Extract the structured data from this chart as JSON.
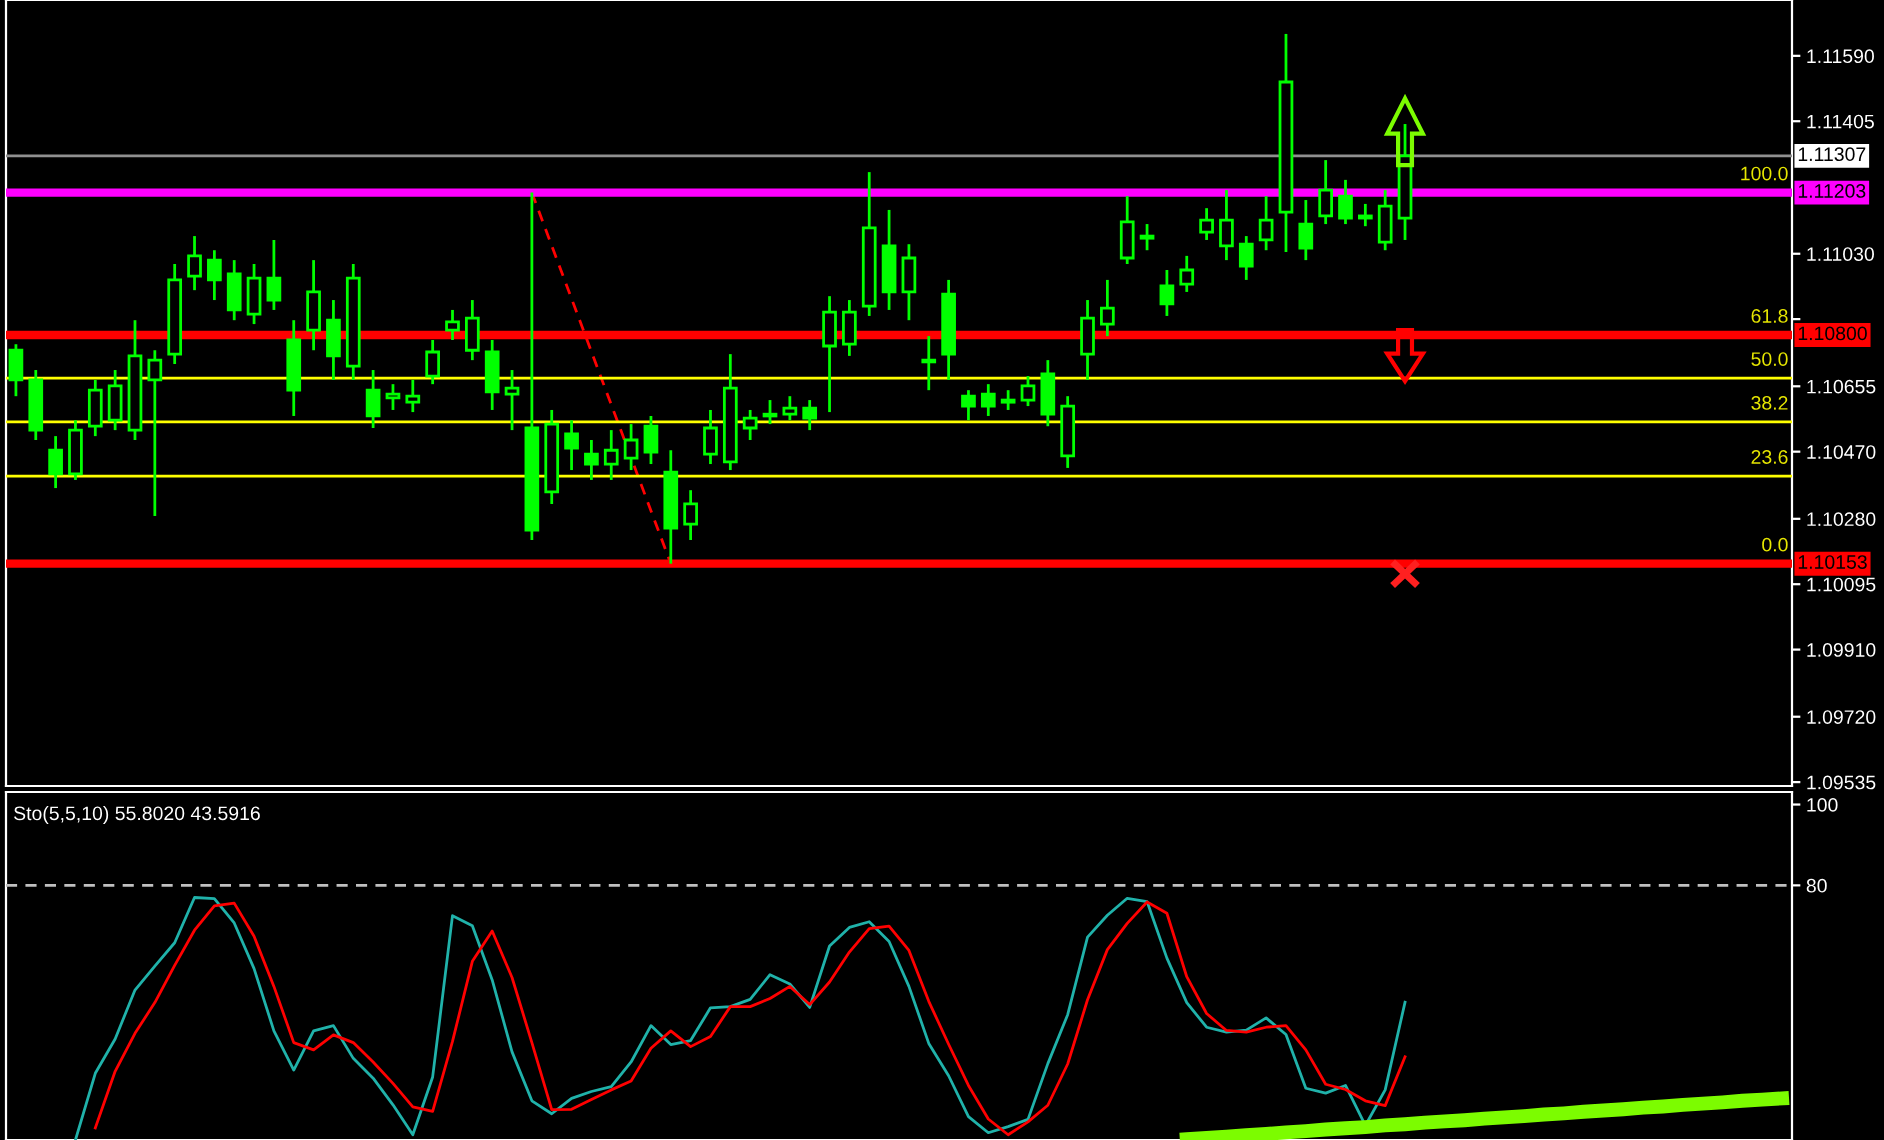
{
  "chart_data": [
    {
      "type": "candlestick",
      "color": "#00ff00",
      "tick_labels": "y",
      "grid": false,
      "categories": [
        null,
        null,
        null,
        null,
        null,
        null,
        null,
        null,
        null,
        null,
        null,
        null,
        null,
        null,
        null,
        null,
        null,
        null,
        null,
        null,
        null,
        null,
        null,
        null,
        null,
        null,
        null,
        null,
        null,
        null,
        null,
        null,
        null,
        null,
        null,
        null,
        null,
        null,
        null,
        null,
        null,
        null,
        null,
        null,
        null,
        null,
        null,
        null,
        null,
        null,
        null,
        null,
        null,
        null,
        null,
        null,
        null,
        null,
        null,
        null,
        null,
        null,
        null,
        null,
        null,
        null,
        null,
        null,
        null,
        null,
        null,
        null,
        null,
        null,
        null,
        null,
        null,
        null,
        null,
        null,
        null,
        null,
        null,
        null,
        null,
        null,
        null,
        null,
        null,
        null
      ],
      "ohlc": [
        [
          1.10757,
          1.10774,
          1.10627,
          1.10673
        ],
        [
          1.10673,
          1.10701,
          1.10503,
          1.10531
        ],
        [
          1.10474,
          1.10514,
          1.10367,
          1.10407
        ],
        [
          1.10407,
          1.10559,
          1.1039,
          1.10531
        ],
        [
          1.10542,
          1.10673,
          1.10514,
          1.10644
        ],
        [
          1.10559,
          1.10701,
          1.10531,
          1.10656
        ],
        [
          1.10531,
          1.10842,
          1.10503,
          1.10741
        ],
        [
          1.10673,
          1.10757,
          1.10288,
          1.10729
        ],
        [
          1.10746,
          1.11001,
          1.10718,
          1.10956
        ],
        [
          1.10967,
          1.1108,
          1.10927,
          1.11024
        ],
        [
          1.11012,
          1.1104,
          1.10899,
          1.10956
        ],
        [
          1.10973,
          1.11012,
          1.10842,
          1.10871
        ],
        [
          1.10859,
          1.11001,
          1.10831,
          1.10961
        ],
        [
          1.10961,
          1.11069,
          1.10871,
          1.10899
        ],
        [
          1.10786,
          1.10842,
          1.10571,
          1.10644
        ],
        [
          1.10814,
          1.11012,
          1.10757,
          1.10922
        ],
        [
          1.10842,
          1.10899,
          1.10673,
          1.10741
        ],
        [
          1.10712,
          1.11001,
          1.10673,
          1.10961
        ],
        [
          1.10644,
          1.10701,
          1.10537,
          1.10571
        ],
        [
          1.10622,
          1.10661,
          1.10588,
          1.10633
        ],
        [
          1.1061,
          1.10673,
          1.10582,
          1.10627
        ],
        [
          1.10684,
          1.10786,
          1.10661,
          1.10752
        ],
        [
          1.10814,
          1.10871,
          1.10786,
          1.10837
        ],
        [
          1.10757,
          1.10899,
          1.10729,
          1.10848
        ],
        [
          1.10752,
          1.10786,
          1.10588,
          1.10639
        ],
        [
          1.10633,
          1.10701,
          1.10531,
          1.1065
        ],
        [
          1.10537,
          1.11203,
          1.1022,
          1.10248
        ],
        [
          1.10356,
          1.10588,
          1.10322,
          1.10548
        ],
        [
          1.1052,
          1.10559,
          1.10418,
          1.1048
        ],
        [
          1.10463,
          1.10503,
          1.1039,
          1.10435
        ],
        [
          1.10435,
          1.10531,
          1.1039,
          1.10474
        ],
        [
          1.10452,
          1.10548,
          1.10418,
          1.10503
        ],
        [
          1.10542,
          1.10571,
          1.10435,
          1.10469
        ],
        [
          1.10412,
          1.10474,
          1.10153,
          1.10254
        ],
        [
          1.10265,
          1.10361,
          1.1022,
          1.10322
        ],
        [
          1.10463,
          1.10588,
          1.10435,
          1.10537
        ],
        [
          1.10441,
          1.10746,
          1.10418,
          1.1065
        ],
        [
          1.10537,
          1.10588,
          1.10503,
          1.10565
        ],
        [
          1.10571,
          1.10616,
          1.10548,
          1.10576
        ],
        [
          1.10576,
          1.10627,
          1.10559,
          1.10593
        ],
        [
          1.10593,
          1.10616,
          1.10531,
          1.10565
        ],
        [
          1.10769,
          1.1091,
          1.10582,
          1.10865
        ],
        [
          1.10774,
          1.10899,
          1.10741,
          1.10865
        ],
        [
          1.10882,
          1.11261,
          1.10854,
          1.11103
        ],
        [
          1.11052,
          1.11154,
          1.10871,
          1.10922
        ],
        [
          1.10922,
          1.11057,
          1.10842,
          1.11018
        ],
        [
          1.10729,
          1.10797,
          1.10644,
          1.10724
        ],
        [
          1.10916,
          1.10956,
          1.10673,
          1.10746
        ],
        [
          1.10627,
          1.10644,
          1.10559,
          1.10599
        ],
        [
          1.10633,
          1.10661,
          1.10571,
          1.10599
        ],
        [
          1.10616,
          1.10644,
          1.10588,
          1.1061
        ],
        [
          1.10616,
          1.10684,
          1.10599,
          1.10656
        ],
        [
          1.1069,
          1.10729,
          1.10542,
          1.10576
        ],
        [
          1.10458,
          1.10627,
          1.10424,
          1.10599
        ],
        [
          1.10746,
          1.10899,
          1.10673,
          1.10848
        ],
        [
          1.10831,
          1.10956,
          1.10797,
          1.10876
        ],
        [
          1.11018,
          1.11193,
          1.11001,
          1.1112
        ],
        [
          1.11074,
          1.11114,
          1.1104,
          1.1108
        ],
        [
          1.10939,
          1.10984,
          1.10854,
          1.10888
        ],
        [
          1.10944,
          1.11024,
          1.10922,
          1.10984
        ],
        [
          1.11091,
          1.11159,
          1.11069,
          1.11125
        ],
        [
          1.11052,
          1.1121,
          1.11012,
          1.11125
        ],
        [
          1.11057,
          1.1108,
          1.10956,
          1.10995
        ],
        [
          1.11069,
          1.11193,
          1.1104,
          1.11125
        ],
        [
          1.11148,
          1.11652,
          1.11035,
          1.11516
        ],
        [
          1.11114,
          1.11182,
          1.11012,
          1.11046
        ],
        [
          1.11137,
          1.11295,
          1.11114,
          1.1121
        ],
        [
          1.11193,
          1.11239,
          1.11114,
          1.11131
        ],
        [
          1.11131,
          1.11171,
          1.11108,
          1.11137
        ],
        [
          1.11063,
          1.1121,
          1.1104,
          1.11165
        ],
        [
          1.11131,
          1.11397,
          1.11069,
          1.11307
        ],
        null,
        null,
        null,
        null,
        null,
        null,
        null,
        null,
        null,
        null,
        null,
        null,
        null,
        null,
        null,
        null,
        null,
        null,
        null
      ],
      "ylim": [
        1.09524,
        1.11748
      ],
      "yticks": [
        {
          "value": 1.1159,
          "label": "1.11590"
        },
        {
          "value": 1.11405,
          "label": "1.11405"
        },
        {
          "value": 1.1103,
          "label": "1.11030"
        },
        {
          "value": 1.10845,
          "label": null
        },
        {
          "value": 1.10655,
          "label": "1.10655"
        },
        {
          "value": 1.1047,
          "label": "1.10470"
        },
        {
          "value": 1.1028,
          "label": "1.10280"
        },
        {
          "value": 1.10095,
          "label": "1.10095"
        },
        {
          "value": 1.0991,
          "label": "1.09910"
        },
        {
          "value": 1.0972,
          "label": "1.09720"
        },
        {
          "value": 1.09535,
          "label": "1.09535"
        }
      ],
      "ref_lines": [
        {
          "axis": "y",
          "value": 1.11307,
          "label": "1.11307",
          "color": "#909090"
        },
        {
          "axis": "y",
          "value": 1.11203,
          "label": "1.11203",
          "color": "#ff00ff"
        },
        {
          "axis": "y",
          "value": 1.108,
          "label": "1.10800",
          "color": "#ff0000"
        },
        {
          "axis": "y",
          "value": 1.10153,
          "label": "1.10153",
          "color": "#ff0000"
        },
        {
          "axis": "y",
          "value": 1.10678,
          "color": "#ffff00"
        },
        {
          "axis": "y",
          "value": 1.10554,
          "color": "#ffff00"
        },
        {
          "axis": "y",
          "value": 1.10401,
          "color": "#ffff00"
        }
      ],
      "series": [
        {
          "type": "line",
          "color": "#ff0000",
          "line_style": "dashed",
          "values": [
            null,
            null,
            null,
            null,
            null,
            null,
            null,
            null,
            null,
            null,
            null,
            null,
            null,
            null,
            null,
            null,
            null,
            null,
            null,
            null,
            null,
            null,
            null,
            null,
            null,
            null,
            1.11203,
            1.11053,
            1.10903,
            1.10753,
            1.10603,
            1.10453,
            1.10303,
            1.10153,
            null,
            null,
            null,
            null,
            null,
            null,
            null,
            null,
            null,
            null,
            null,
            null,
            null,
            null,
            null,
            null,
            null,
            null,
            null,
            null,
            null,
            null,
            null,
            null,
            null,
            null,
            null,
            null,
            null,
            null,
            null,
            null,
            null,
            null,
            null,
            null,
            null,
            null,
            null,
            null,
            null,
            null,
            null,
            null,
            null,
            null,
            null,
            null,
            null,
            null,
            null,
            null,
            null,
            null,
            null,
            null
          ]
        }
      ],
      "annotations": [
        {
          "text": "100.0",
          "y": 1.11203
        },
        {
          "text": "61.8",
          "y": 1.108
        },
        {
          "text": "50.0",
          "y": 1.10678
        },
        {
          "text": "38.2",
          "y": 1.10554
        },
        {
          "text": "23.6",
          "y": 1.10401
        },
        {
          "text": "0.0",
          "y": 1.10153
        }
      ]
    },
    {
      "type": "line",
      "title": "Sto(5,5,10) 55.8020 43.5916",
      "tick_labels": "y",
      "grid": false,
      "categories": [
        null,
        null,
        null,
        null,
        null,
        null,
        null,
        null,
        null,
        null,
        null,
        null,
        null,
        null,
        null,
        null,
        null,
        null,
        null,
        null,
        null,
        null,
        null,
        null,
        null,
        null,
        null,
        null,
        null,
        null,
        null,
        null,
        null,
        null,
        null,
        null,
        null,
        null,
        null,
        null,
        null,
        null,
        null,
        null,
        null,
        null,
        null,
        null,
        null,
        null,
        null,
        null,
        null,
        null,
        null,
        null,
        null,
        null,
        null,
        null,
        null,
        null,
        null,
        null,
        null,
        null,
        null,
        null,
        null,
        null,
        null,
        null,
        null,
        null,
        null,
        null,
        null,
        null,
        null,
        null,
        null,
        null,
        null,
        null,
        null,
        null,
        null,
        null,
        null,
        null
      ],
      "ylim": [
        17,
        103.1
      ],
      "yticks": [
        100,
        80
      ],
      "ref_lines": [
        {
          "axis": "y",
          "value": 80,
          "color": "#c0c0c0",
          "line_style": "dashed"
        }
      ],
      "series": [
        {
          "color": "#20b2aa",
          "values": [
            null,
            null,
            null,
            17.0,
            33.5,
            42,
            54.1,
            60,
            65.8,
            77,
            76.7,
            70.7,
            59.4,
            44,
            34.3,
            44,
            45.3,
            37.2,
            32.3,
            25.7,
            18.3,
            32.6,
            72.5,
            70,
            56.6,
            38.8,
            26.7,
            23.5,
            27.3,
            29,
            30.2,
            36.3,
            45.3,
            40.6,
            41.6,
            49.7,
            50,
            51.8,
            57.9,
            55.6,
            49.8,
            65,
            69.6,
            71,
            66.1,
            55,
            40.9,
            32.9,
            22.8,
            18.8,
            20.3,
            22.1,
            35.9,
            48,
            67.2,
            72.6,
            76.8,
            76,
            62,
            51,
            44.9,
            43.7,
            44.2,
            47.2,
            43.1,
            29.8,
            28.6,
            30.5,
            20.6,
            29.4,
            51.1,
            null,
            null,
            null,
            null,
            null,
            null,
            null,
            null,
            null,
            null,
            null,
            null,
            null,
            null,
            null,
            null,
            null,
            null,
            null
          ]
        },
        {
          "color": "#ff0000",
          "values": [
            null,
            null,
            null,
            null,
            20,
            34,
            43.4,
            51,
            60.2,
            68.9,
            74.9,
            75.6,
            67.4,
            55.0,
            41.1,
            39.3,
            43,
            41.1,
            36.3,
            31.0,
            25.2,
            24.1,
            41.4,
            61.2,
            68.7,
            57.2,
            41.1,
            24.5,
            24.6,
            27,
            29.4,
            31.6,
            39.7,
            44,
            40.1,
            42.6,
            50,
            50,
            52,
            55,
            50.5,
            56.1,
            63.5,
            69.3,
            69.9,
            63.9,
            51.3,
            40.7,
            30.5,
            22.2,
            18.3,
            21.5,
            25.6,
            35.8,
            51.7,
            64.1,
            70.6,
            75.9,
            73.1,
            57.4,
            48.3,
            44.1,
            43.7,
            44.9,
            45.3,
            39.3,
            30.8,
            29.5,
            26.7,
            25.5,
            37.6,
            null,
            null,
            null,
            null,
            null,
            null,
            null,
            null,
            null,
            null,
            null,
            null,
            null,
            null,
            null,
            null,
            null,
            null,
            null
          ]
        },
        {
          "color": "#7cfc00",
          "values": [
            null,
            null,
            null,
            null,
            null,
            null,
            null,
            null,
            null,
            null,
            null,
            null,
            null,
            null,
            null,
            null,
            null,
            null,
            null,
            null,
            null,
            null,
            null,
            null,
            null,
            null,
            null,
            null,
            null,
            null,
            null,
            null,
            null,
            null,
            null,
            null,
            null,
            null,
            null,
            null,
            null,
            null,
            null,
            null,
            null,
            null,
            null,
            null,
            null,
            null,
            null,
            null,
            null,
            null,
            null,
            null,
            null,
            null,
            null,
            17.2,
            17.5,
            17.8,
            18.2,
            18.5,
            18.9,
            19.2,
            19.6,
            19.9,
            20.2,
            20.6,
            20.9,
            21.3,
            21.6,
            21.9,
            22.3,
            22.6,
            22.9,
            23.3,
            23.6,
            24.0,
            24.3,
            24.6,
            25.0,
            25.3,
            25.7,
            26.0,
            26.3,
            26.7,
            27.0,
            27.3
          ]
        }
      ]
    }
  ]
}
